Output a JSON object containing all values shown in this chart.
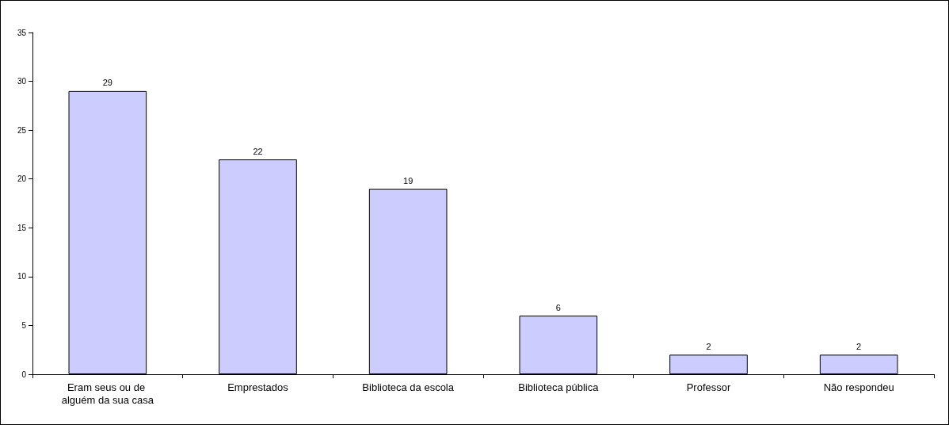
{
  "chart_data": {
    "type": "bar",
    "categories": [
      "Eram seus ou de alguém da sua casa",
      "Emprestados",
      "Biblioteca da escola",
      "Biblioteca pública",
      "Professor",
      "Não respondeu"
    ],
    "values": [
      29,
      22,
      19,
      6,
      2,
      2
    ],
    "color": "#ccccff",
    "ylim": [
      0,
      35
    ],
    "yticks": [
      0,
      5,
      10,
      15,
      20,
      25,
      30,
      35
    ],
    "grid": false,
    "data_labels": true
  }
}
